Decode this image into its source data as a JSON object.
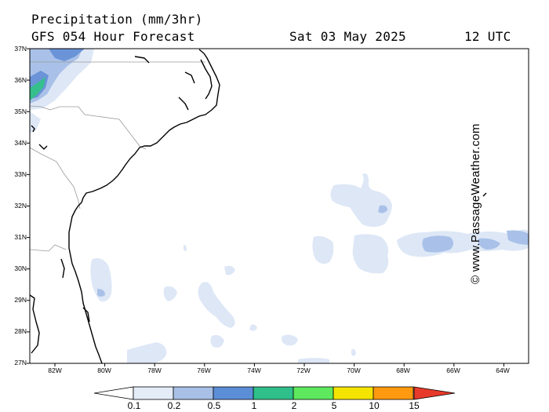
{
  "header": {
    "title": "Precipitation (mm/3hr)",
    "model": "GFS 054 Hour Forecast",
    "valid_date": "Sat 03 May 2025",
    "valid_time": "12 UTC"
  },
  "credit": "© www.PassageWeather.com",
  "lat_labels": [
    "37N",
    "36N",
    "35N",
    "34N",
    "33N",
    "32N",
    "31N",
    "30N",
    "29N",
    "28N",
    "27N"
  ],
  "lon_labels": [
    "82W",
    "80W",
    "78W",
    "76W",
    "74W",
    "72W",
    "70W",
    "68W",
    "66W",
    "64W"
  ],
  "colorbar": {
    "labels": [
      "0.1",
      "0.2",
      "0.5",
      "1",
      "2",
      "5",
      "10",
      "15"
    ],
    "colors": [
      "#e4ecf8",
      "#a8c0e6",
      "#5c8ed8",
      "#2fbf8a",
      "#5ee85e",
      "#f5e400",
      "#ff9a10",
      "#e83a2a"
    ]
  },
  "precip_colors": {
    "light": "#dde7f6",
    "medium": "#a9c1e8",
    "heavy": "#6a93d8",
    "very_heavy": "#35bf8c"
  }
}
